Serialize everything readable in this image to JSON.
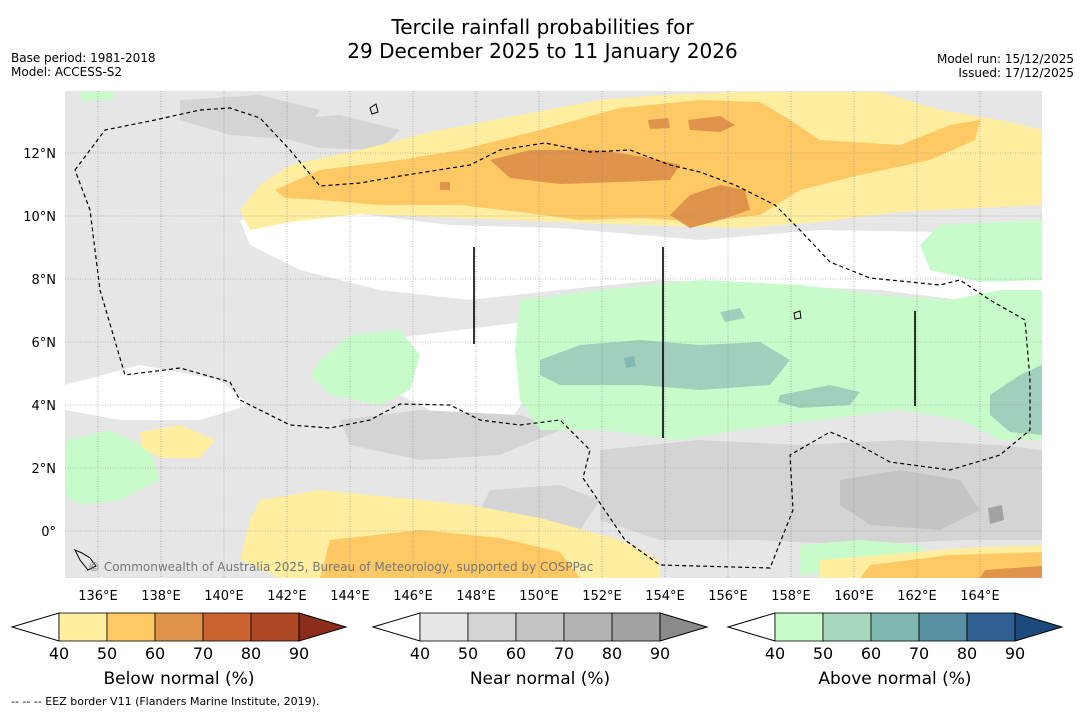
{
  "title_line1": "Tercile rainfall probabilities for",
  "title_line2": "29 December 2025 to 11 January 2026",
  "meta": {
    "base_period": "Base period: 1981-2018",
    "model": "Model: ACCESS-S2",
    "model_run": "Model run: 15/12/2025",
    "issued": "Issued: 17/12/2025"
  },
  "map": {
    "lat_labels": [
      "12°N",
      "10°N",
      "8°N",
      "6°N",
      "4°N",
      "2°N",
      "0°"
    ],
    "lat_values": [
      12,
      10,
      8,
      6,
      4,
      2,
      0
    ],
    "lon_labels": [
      "136°E",
      "138°E",
      "140°E",
      "142°E",
      "144°E",
      "146°E",
      "148°E",
      "150°E",
      "152°E",
      "154°E",
      "156°E",
      "158°E",
      "160°E",
      "162°E",
      "164°E"
    ],
    "lon_values": [
      136,
      138,
      140,
      142,
      144,
      146,
      148,
      150,
      152,
      154,
      156,
      158,
      160,
      162,
      164
    ],
    "copyright": "© Commonwealth of Australia 2025, Bureau of Meteorology, supported by COSPPac"
  },
  "colorbars": [
    {
      "title": "Below normal (%)",
      "ticks": [
        "40",
        "50",
        "60",
        "70",
        "80",
        "90"
      ],
      "colors": [
        "#ffeda0",
        "#fec965",
        "#e0934a",
        "#cb6331",
        "#ac4824",
        "#8b2d1a"
      ]
    },
    {
      "title": "Near normal (%)",
      "ticks": [
        "40",
        "50",
        "60",
        "70",
        "80",
        "90"
      ],
      "colors": [
        "#e6e6e6",
        "#d4d4d4",
        "#c4c4c4",
        "#b3b3b3",
        "#a2a2a2",
        "#8a8a8a"
      ]
    },
    {
      "title": "Above normal (%)",
      "ticks": [
        "40",
        "50",
        "60",
        "70",
        "80",
        "90"
      ],
      "colors": [
        "#c7fcca",
        "#a6d8bb",
        "#80b9b2",
        "#5990a3",
        "#305f91",
        "#1b4b7d"
      ]
    }
  ],
  "footnote": "--  --  -- EEZ border V11 (Flanders Marine Institute, 2019).",
  "colors": {
    "white_band": "#ffffff",
    "below_light": "#ffeda0",
    "below_mid": "#fec965",
    "below_dark": "#e0934a",
    "near_light": "#e6e6e6",
    "near_mid": "#d4d4d4",
    "near_dark": "#c4c4c4",
    "near_darker": "#a2a2a2",
    "above_light": "#c7fcca",
    "above_mid": "#a0d0bb",
    "above_dark": "#80b9b2"
  }
}
